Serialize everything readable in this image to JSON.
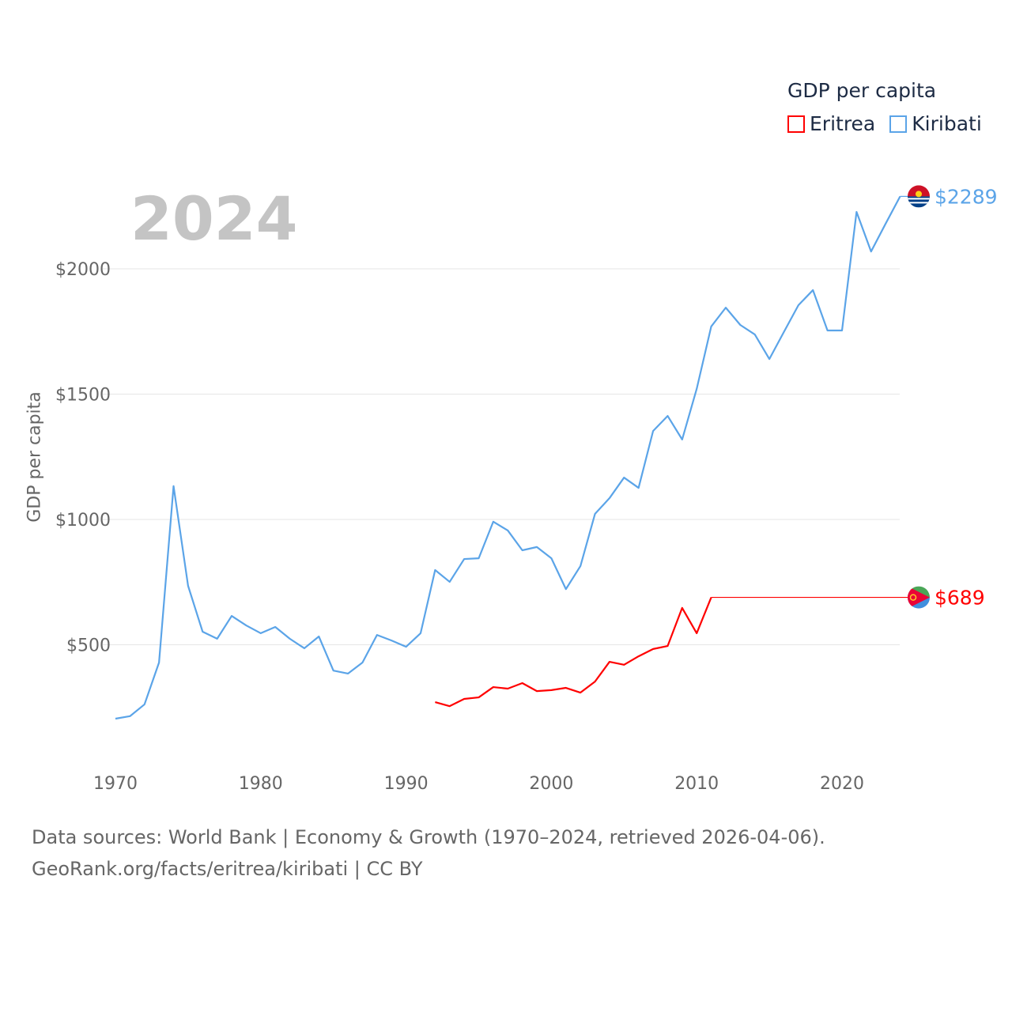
{
  "chart_data": {
    "type": "line",
    "title": "GDP per capita",
    "xlabel": "",
    "ylabel": "GDP per capita",
    "current_year_label": "2024",
    "xlim": [
      1970,
      2024
    ],
    "ylim": [
      0,
      2350
    ],
    "x_ticks": [
      1970,
      1980,
      1990,
      2000,
      2010,
      2020
    ],
    "y_ticks": [
      500,
      1000,
      1500,
      2000
    ],
    "y_tick_labels": [
      "$500",
      "$1000",
      "$1500",
      "$2000"
    ],
    "grid": true,
    "legend_position": "top-right",
    "series": [
      {
        "name": "Eritrea",
        "color": "#ff0000",
        "end_label": "$689",
        "x": [
          1992,
          1993,
          1994,
          1995,
          1996,
          1997,
          1998,
          1999,
          2000,
          2001,
          2002,
          2003,
          2004,
          2005,
          2006,
          2007,
          2008,
          2009,
          2010,
          2011
        ],
        "values": [
          271,
          255,
          284,
          290,
          331,
          325,
          347,
          315,
          319,
          328,
          309,
          353,
          432,
          420,
          454,
          483,
          495,
          647,
          546,
          689
        ],
        "carried_forward_to": 2024
      },
      {
        "name": "Kiribati",
        "color": "#5ba4e8",
        "end_label": "$2289",
        "x": [
          1970,
          1971,
          1972,
          1973,
          1974,
          1975,
          1976,
          1977,
          1978,
          1979,
          1980,
          1981,
          1982,
          1983,
          1984,
          1985,
          1986,
          1987,
          1988,
          1989,
          1990,
          1991,
          1992,
          1993,
          1994,
          1995,
          1996,
          1997,
          1998,
          1999,
          2000,
          2001,
          2002,
          2003,
          2004,
          2005,
          2006,
          2007,
          2008,
          2009,
          2010,
          2011,
          2012,
          2013,
          2014,
          2015,
          2016,
          2017,
          2018,
          2019,
          2020,
          2021,
          2022,
          2023,
          2024
        ],
        "values": [
          205,
          215,
          262,
          429,
          1133,
          735,
          552,
          524,
          615,
          577,
          546,
          571,
          524,
          486,
          533,
          397,
          385,
          429,
          539,
          517,
          492,
          546,
          798,
          751,
          842,
          845,
          991,
          956,
          877,
          890,
          845,
          722,
          814,
          1022,
          1085,
          1167,
          1126,
          1353,
          1413,
          1319,
          1521,
          1770,
          1845,
          1776,
          1738,
          1640,
          1748,
          1855,
          1915,
          1754,
          1754,
          2227,
          2069,
          2180,
          2289
        ]
      }
    ]
  },
  "legend": {
    "title": "GDP per capita",
    "items": [
      "Eritrea",
      "Kiribati"
    ]
  },
  "footer": {
    "line1": "Data sources: World Bank | Economy & Growth (1970–2024, retrieved 2026-04-06).",
    "line2": "GeoRank.org/facts/eritrea/kiribati | CC BY"
  }
}
